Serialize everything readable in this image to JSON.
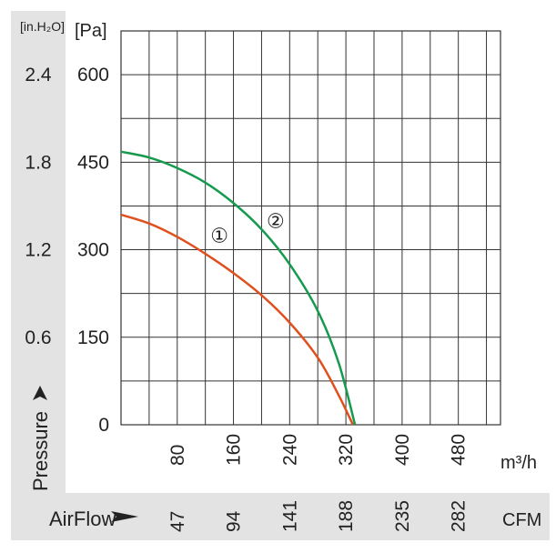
{
  "chart_data": {
    "type": "line",
    "title": "",
    "xlabel": "AirFlow",
    "ylabel": "Pressure",
    "x_unit_primary": "m³/h",
    "x_unit_secondary": "CFM",
    "y_unit_primary": "[Pa]",
    "y_unit_secondary": "[in.H₂O]",
    "xlim": [
      0,
      540
    ],
    "ylim": [
      0,
      675
    ],
    "x_ticks": [
      80,
      160,
      240,
      320,
      400,
      480
    ],
    "x_ticks_secondary": [
      "47",
      "94",
      "141",
      "188",
      "235",
      "282"
    ],
    "y_ticks": [
      0,
      150,
      300,
      450,
      600
    ],
    "y_ticks_primary_labels": [
      "0",
      "150",
      "300",
      "450",
      "600"
    ],
    "y_ticks_secondary_labels": [
      "",
      "0.6",
      "1.2",
      "1.8",
      "2.4"
    ],
    "grid": true,
    "series": [
      {
        "name": "①",
        "color": "#e0501e",
        "x": [
          0,
          40,
          80,
          120,
          160,
          200,
          240,
          280,
          310,
          330
        ],
        "y": [
          360,
          345,
          322,
          293,
          260,
          222,
          175,
          115,
          50,
          0
        ]
      },
      {
        "name": "②",
        "color": "#169a4e",
        "x": [
          0,
          40,
          80,
          120,
          160,
          200,
          240,
          280,
          310,
          333
        ],
        "y": [
          468,
          458,
          440,
          415,
          380,
          335,
          275,
          195,
          105,
          0
        ]
      }
    ],
    "annotations": [
      {
        "text": "①",
        "x": 140,
        "y": 325
      },
      {
        "text": "②",
        "x": 220,
        "y": 350
      }
    ]
  }
}
